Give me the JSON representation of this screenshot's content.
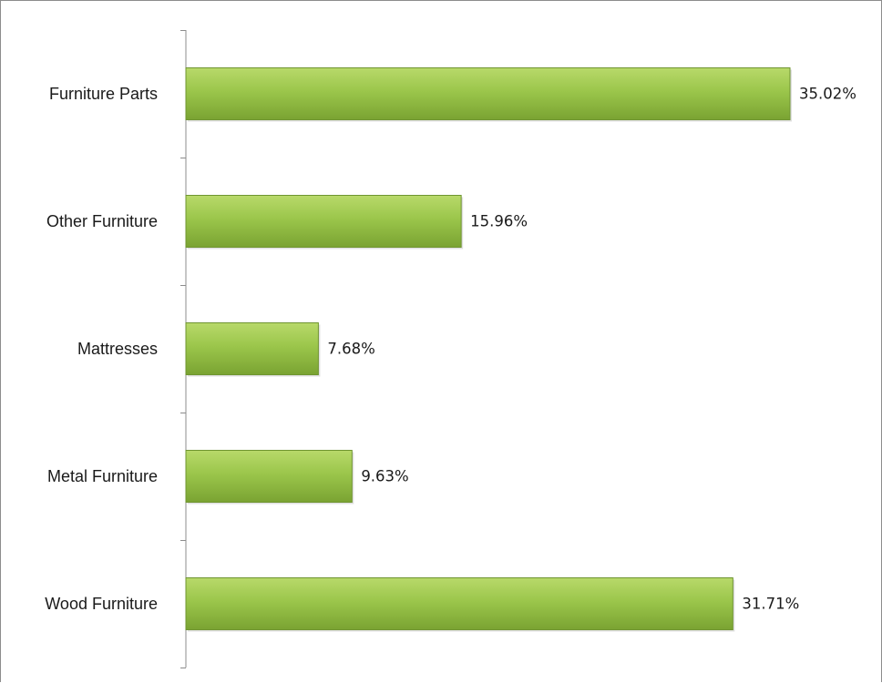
{
  "chart_data": {
    "type": "bar",
    "orientation": "horizontal",
    "title": "",
    "xlabel": "",
    "ylabel": "",
    "categories": [
      "Furniture Parts",
      "Other Furniture",
      "Mattresses",
      "Metal Furniture",
      "Wood Furniture"
    ],
    "values": [
      35.02,
      15.96,
      7.68,
      9.63,
      31.71
    ],
    "value_labels": [
      "35.02%",
      "15.96%",
      "7.68%",
      "9.63%",
      "31.71%"
    ],
    "xlim": [
      0,
      40
    ],
    "grid": false,
    "legend": "none",
    "bar_color": "#8cb640"
  }
}
